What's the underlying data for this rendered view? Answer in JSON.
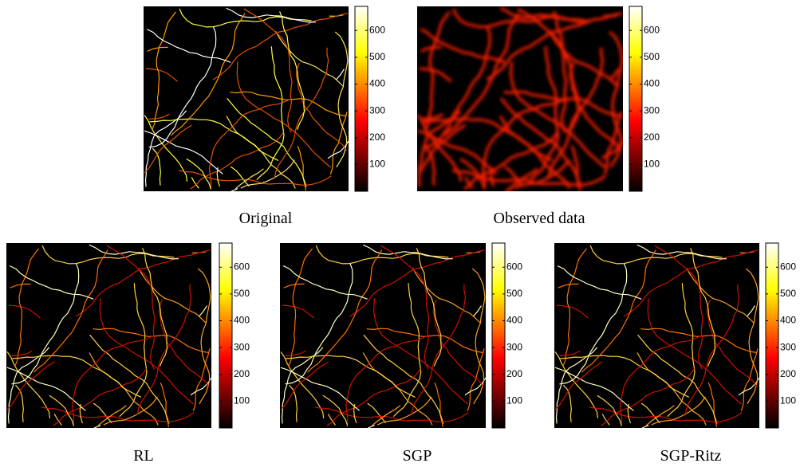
{
  "chart_data": [
    {
      "type": "heatmap",
      "title": "Original",
      "clim": [
        0,
        690
      ],
      "cticks": [
        100,
        200,
        300,
        400,
        500,
        600
      ]
    },
    {
      "type": "heatmap",
      "title": "Observed data",
      "clim": [
        0,
        690
      ],
      "cticks": [
        100,
        200,
        300,
        400,
        500,
        600
      ]
    },
    {
      "type": "heatmap",
      "title": "RL",
      "clim": [
        0,
        690
      ],
      "cticks": [
        100,
        200,
        300,
        400,
        500,
        600
      ]
    },
    {
      "type": "heatmap",
      "title": "SGP",
      "clim": [
        0,
        690
      ],
      "cticks": [
        100,
        200,
        300,
        400,
        500,
        600
      ]
    },
    {
      "type": "heatmap",
      "title": "SGP-Ritz",
      "clim": [
        0,
        690
      ],
      "cticks": [
        100,
        200,
        300,
        400,
        500,
        600
      ]
    }
  ]
}
